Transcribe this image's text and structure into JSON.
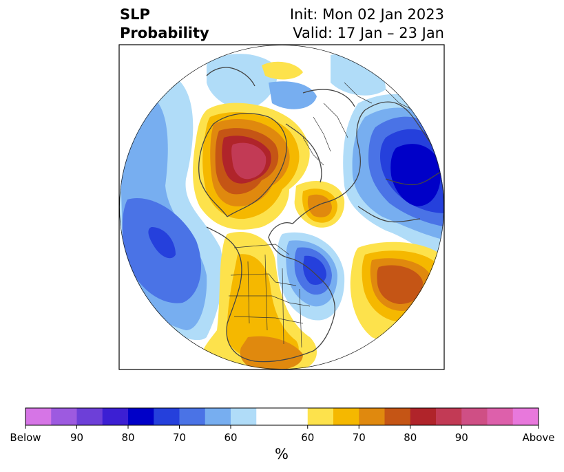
{
  "title": {
    "left_line1": "SLP",
    "left_line2": "Probability",
    "right_line1": "Init: Mon 02 Jan 2023",
    "right_line2": "Valid: 17 Jan – 23 Jan"
  },
  "colorbar": {
    "colors": [
      "#d675e6",
      "#9d5ae0",
      "#6d3fd8",
      "#3c1fd3",
      "#0000c8",
      "#2540dc",
      "#4a73e6",
      "#77aef0",
      "#b0dcf8",
      "#ffffff",
      "#ffffff",
      "#fde24c",
      "#f5b800",
      "#e0890e",
      "#c55515",
      "#b0242a",
      "#c23a55",
      "#cf4f85",
      "#dd60ab",
      "#e878dc"
    ],
    "tick_labels": [
      "Below",
      "90",
      "80",
      "70",
      "60",
      "60",
      "70",
      "80",
      "90",
      "Above"
    ],
    "unit": "%"
  },
  "map": {
    "projection": "north-polar-stereographic",
    "features": [
      "coastlines",
      "country-borders",
      "us-state-borders"
    ]
  }
}
